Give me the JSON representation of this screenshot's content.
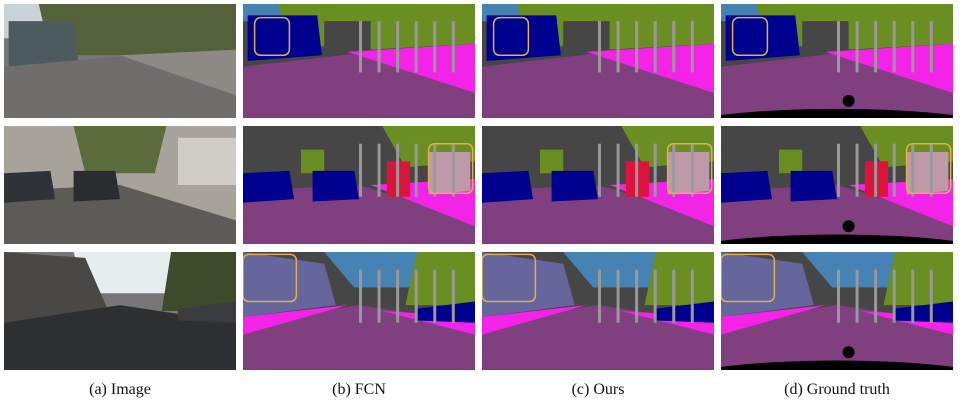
{
  "figure": {
    "captions": [
      "(a)  Image",
      "(b)  FCN",
      "(c)  Ours",
      "(d)  Ground truth"
    ]
  }
}
